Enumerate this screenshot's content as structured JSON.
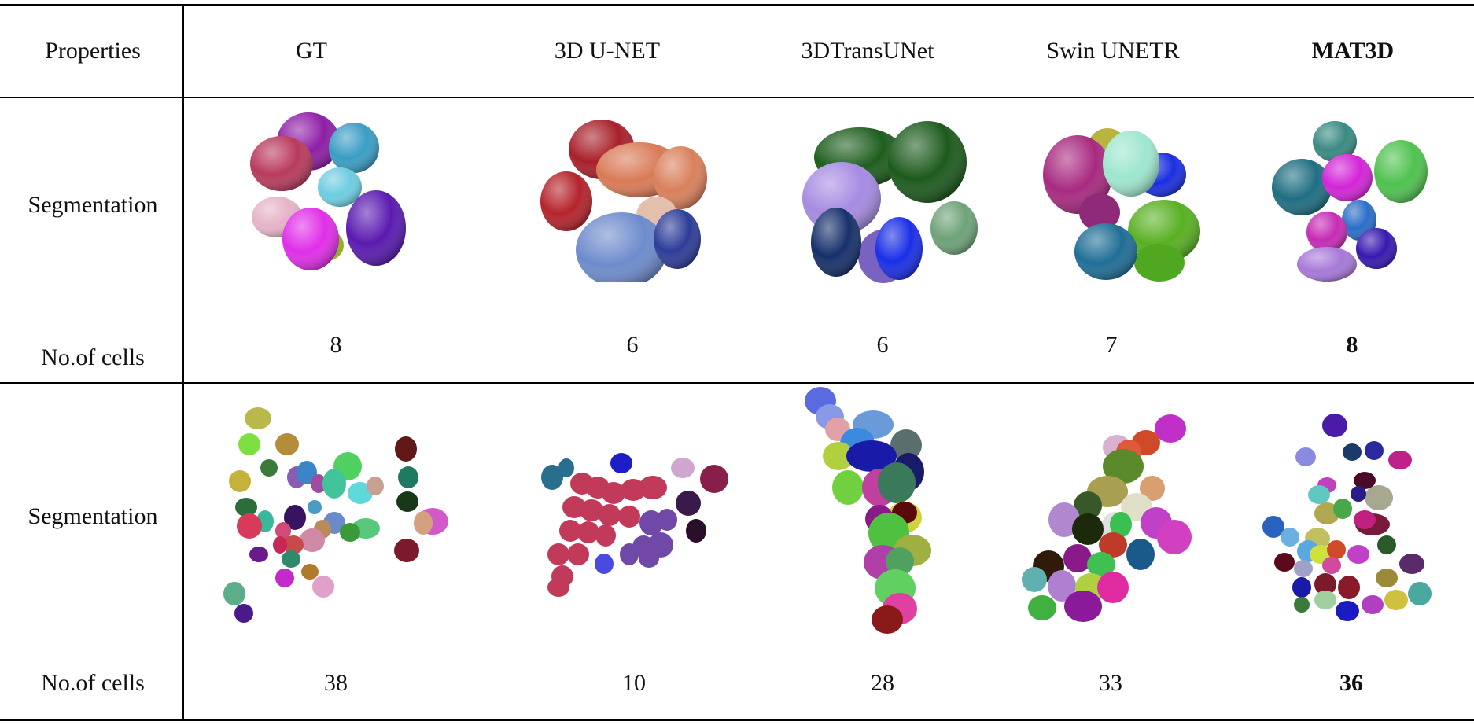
{
  "header": {
    "properties": "Properties",
    "methods": [
      "GT",
      "3D U-NET",
      "3DTransUNet",
      "Swin UNETR",
      "MAT3D"
    ]
  },
  "rows": [
    {
      "segmentation_label": "Segmentation",
      "cells_label": "No.of cells",
      "counts": [
        "8",
        "6",
        "6",
        "7",
        "8"
      ]
    },
    {
      "segmentation_label": "Segmentation",
      "cells_label": "No.of cells",
      "counts": [
        "38",
        "10",
        "28",
        "33",
        "36"
      ]
    }
  ],
  "highlight_method": "MAT3D"
}
